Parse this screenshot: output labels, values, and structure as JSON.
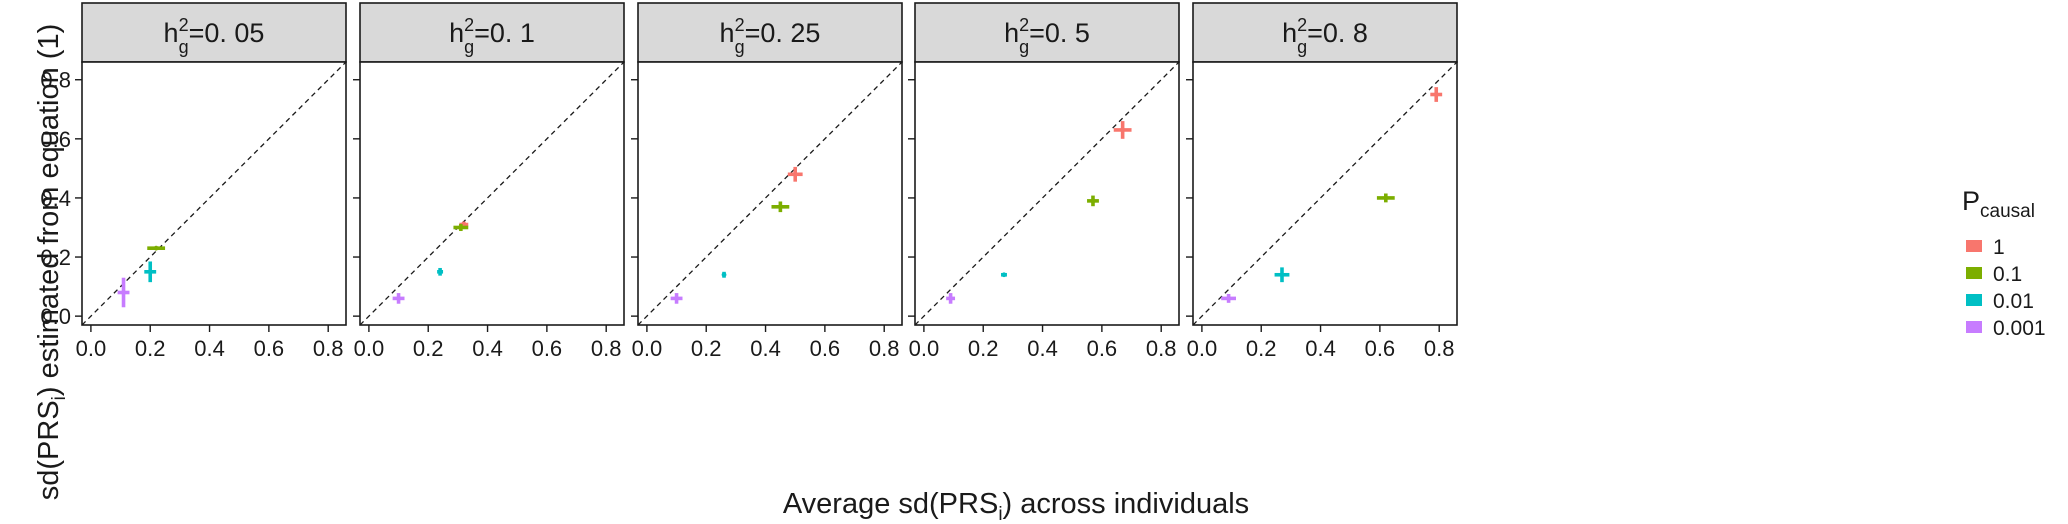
{
  "figure": {
    "xlabel": "Average sd(PRS",
    "xlabel_sub": "i",
    "xlabel_suffix": ") across individuals",
    "ylabel": "sd(PRS",
    "ylabel_sub": "i",
    "ylabel_suffix": ") estimated from equation (1)",
    "facet_prefix": "h",
    "facet_sup": "2",
    "facet_sub": "g",
    "legend": {
      "title": "P",
      "title_sub": "causal",
      "entries": [
        {
          "label": "1",
          "color": "#F8766D"
        },
        {
          "label": "0.1",
          "color": "#7CAE00"
        },
        {
          "label": "0.01",
          "color": "#00BFC4"
        },
        {
          "label": "0.001",
          "color": "#C77CFF"
        }
      ]
    }
  },
  "chart_data": {
    "type": "scatter",
    "x_ticks": [
      "0.0",
      "0.2",
      "0.4",
      "0.6",
      "0.8"
    ],
    "y_ticks": [
      "0.0",
      "0.2",
      "0.4",
      "0.6",
      "0.8"
    ],
    "x_tick_values": [
      0,
      0.2,
      0.4,
      0.6,
      0.8
    ],
    "y_tick_values": [
      0,
      0.2,
      0.4,
      0.6,
      0.8
    ],
    "xlim": [
      -0.03,
      0.86
    ],
    "ylim": [
      -0.03,
      0.86
    ],
    "reference_line": "y = x (dashed)",
    "legend_position": "right",
    "grid": false,
    "panels": [
      {
        "label": "=0. 05",
        "points": [
          {
            "pcausal": "0.1",
            "x": 0.22,
            "y": 0.23,
            "xerr": 0.03,
            "yerr": 0.005
          },
          {
            "pcausal": "0.01",
            "x": 0.2,
            "y": 0.15,
            "xerr": 0.02,
            "yerr": 0.035
          },
          {
            "pcausal": "0.001",
            "x": 0.11,
            "y": 0.08,
            "xerr": 0.02,
            "yerr": 0.05
          }
        ]
      },
      {
        "label": "=0. 1",
        "points": [
          {
            "pcausal": "1",
            "x": 0.32,
            "y": 0.31,
            "xerr": 0.015,
            "yerr": 0.01
          },
          {
            "pcausal": "0.1",
            "x": 0.31,
            "y": 0.3,
            "xerr": 0.025,
            "yerr": 0.012
          },
          {
            "pcausal": "0.01",
            "x": 0.24,
            "y": 0.15,
            "xerr": 0.01,
            "yerr": 0.013
          },
          {
            "pcausal": "0.001",
            "x": 0.1,
            "y": 0.06,
            "xerr": 0.02,
            "yerr": 0.018
          }
        ]
      },
      {
        "label": "=0. 25",
        "points": [
          {
            "pcausal": "1",
            "x": 0.5,
            "y": 0.48,
            "xerr": 0.025,
            "yerr": 0.025
          },
          {
            "pcausal": "0.1",
            "x": 0.45,
            "y": 0.37,
            "xerr": 0.03,
            "yerr": 0.018
          },
          {
            "pcausal": "0.01",
            "x": 0.26,
            "y": 0.14,
            "xerr": 0.005,
            "yerr": 0.01
          },
          {
            "pcausal": "0.001",
            "x": 0.1,
            "y": 0.06,
            "xerr": 0.02,
            "yerr": 0.018
          }
        ]
      },
      {
        "label": "=0. 5",
        "points": [
          {
            "pcausal": "1",
            "x": 0.67,
            "y": 0.63,
            "xerr": 0.03,
            "yerr": 0.03
          },
          {
            "pcausal": "0.1",
            "x": 0.57,
            "y": 0.39,
            "xerr": 0.02,
            "yerr": 0.018
          },
          {
            "pcausal": "0.01",
            "x": 0.27,
            "y": 0.14,
            "xerr": 0.01,
            "yerr": 0.005
          },
          {
            "pcausal": "0.001",
            "x": 0.09,
            "y": 0.06,
            "xerr": 0.015,
            "yerr": 0.018
          }
        ]
      },
      {
        "label": "=0. 8",
        "points": [
          {
            "pcausal": "1",
            "x": 0.79,
            "y": 0.75,
            "xerr": 0.02,
            "yerr": 0.025
          },
          {
            "pcausal": "0.1",
            "x": 0.62,
            "y": 0.4,
            "xerr": 0.03,
            "yerr": 0.015
          },
          {
            "pcausal": "0.01",
            "x": 0.27,
            "y": 0.14,
            "xerr": 0.025,
            "yerr": 0.025
          },
          {
            "pcausal": "0.001",
            "x": 0.09,
            "y": 0.06,
            "xerr": 0.025,
            "yerr": 0.015
          }
        ]
      }
    ]
  }
}
